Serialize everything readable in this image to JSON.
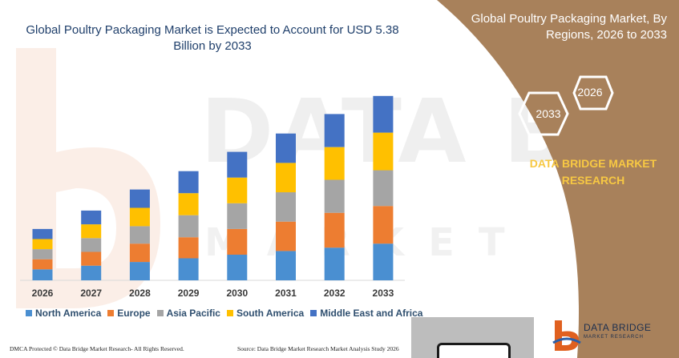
{
  "chart_data": {
    "type": "bar",
    "stacked": true,
    "title": "Global Poultry Packaging Market is Expected to Account for USD 5.38 Billion by 2033",
    "categories": [
      "2026",
      "2027",
      "2028",
      "2029",
      "2030",
      "2031",
      "2032",
      "2033"
    ],
    "series": [
      {
        "name": "North America",
        "color": "#4a8fd1",
        "values": [
          0.6,
          0.8,
          1.0,
          1.2,
          1.4,
          1.6,
          1.78,
          2.0
        ]
      },
      {
        "name": "Europe",
        "color": "#ed7d31",
        "values": [
          0.55,
          0.75,
          1.0,
          1.15,
          1.4,
          1.6,
          1.9,
          2.05
        ]
      },
      {
        "name": "Asia Pacific",
        "color": "#a5a5a5",
        "values": [
          0.55,
          0.75,
          0.95,
          1.2,
          1.4,
          1.6,
          1.8,
          1.95
        ]
      },
      {
        "name": "South America",
        "color": "#ffc000",
        "values": [
          0.55,
          0.75,
          1.0,
          1.2,
          1.4,
          1.6,
          1.78,
          2.05
        ]
      },
      {
        "name": "Middle East and Africa",
        "color": "#4472c4",
        "values": [
          0.55,
          0.75,
          1.0,
          1.2,
          1.4,
          1.6,
          1.8,
          2.0
        ]
      }
    ],
    "xlabel": "",
    "ylabel": "",
    "ylim": [
      0,
      11
    ],
    "grid": false,
    "legend_position": "bottom"
  },
  "side_panel": {
    "title": "Global Poultry Packaging Market, By Regions, 2026 to 2033",
    "hex_2026": "2026",
    "hex_2033": "2033",
    "brand_line1": "DATA BRIDGE MARKET",
    "brand_line2": "RESEARCH"
  },
  "footer": {
    "left": "DMCA Protected © Data Bridge Market Research- All Rights Reserved.",
    "right": "Source: Data Bridge Market Research Market Analysis Study 2026"
  },
  "logo": {
    "name": "DATA BRIDGE",
    "sub": "MARKET RESEARCH"
  },
  "watermark": {
    "main": "DATA BRIDGE",
    "sub": "MARKET"
  },
  "colors": {
    "panel_brown": "#a8815b",
    "title_blue": "#1f3f6b",
    "brand_yellow": "#f7c843"
  }
}
